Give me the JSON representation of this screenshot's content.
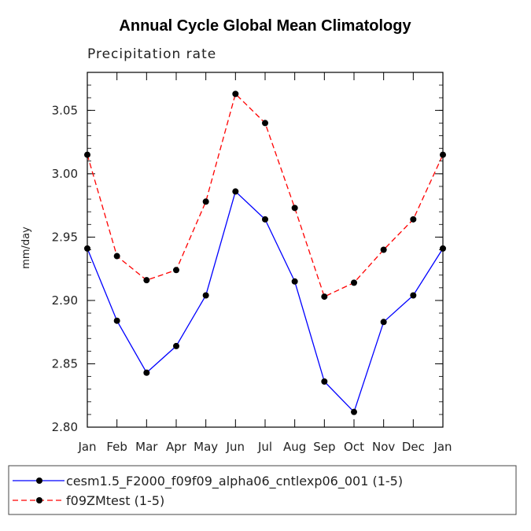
{
  "chart_data": {
    "type": "line",
    "title": "Annual Cycle Global Mean Climatology",
    "subtitle": "Precipitation rate",
    "xlabel": "",
    "ylabel": "mm/day",
    "categories": [
      "Jan",
      "Feb",
      "Mar",
      "Apr",
      "May",
      "Jun",
      "Jul",
      "Aug",
      "Sep",
      "Oct",
      "Nov",
      "Dec",
      "Jan"
    ],
    "ylim": [
      2.8,
      3.08
    ],
    "yticks": [
      "2.80",
      "2.85",
      "2.90",
      "2.95",
      "3.00",
      "3.05"
    ],
    "ytick_values": [
      2.8,
      2.85,
      2.9,
      2.95,
      3.0,
      3.05
    ],
    "grid": false,
    "legend_position": "bottom",
    "series": [
      {
        "name": "cesm1.5_F2000_f09f09_alpha06_cntlexp06_001 (1-5)",
        "color": "#0000ff",
        "dash": "solid",
        "values": [
          2.941,
          2.884,
          2.843,
          2.864,
          2.904,
          2.986,
          2.964,
          2.915,
          2.836,
          2.812,
          2.883,
          2.904,
          2.941
        ]
      },
      {
        "name": "f09ZMtest (1-5)",
        "color": "#ff0000",
        "dash": "dashed",
        "values": [
          3.015,
          2.935,
          2.916,
          2.924,
          2.978,
          3.063,
          3.04,
          2.973,
          2.903,
          2.914,
          2.94,
          2.964,
          3.015
        ]
      }
    ]
  }
}
